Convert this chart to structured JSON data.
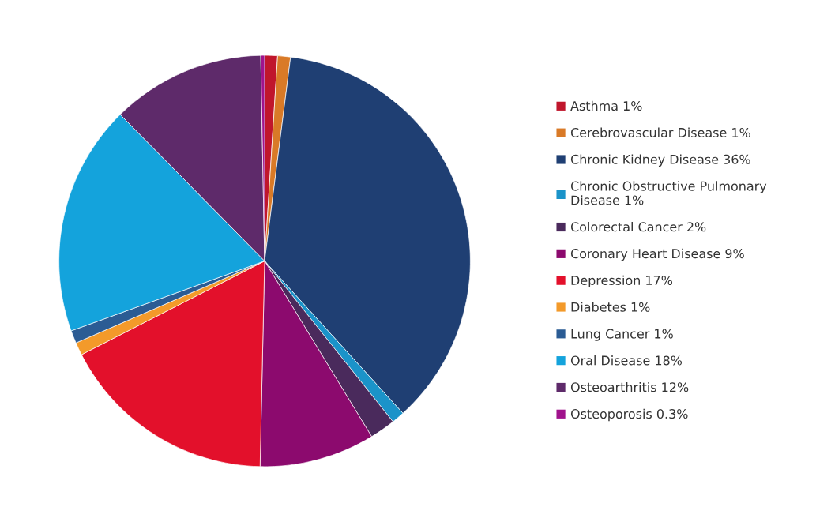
{
  "chart_data": {
    "type": "pie",
    "categories": [
      "Asthma 1%",
      "Cerebrovascular Disease 1%",
      "Chronic Kidney Disease 36%",
      "Chronic Obstructive Pulmonary\nDisease 1%",
      "Colorectal Cancer 2%",
      "Coronary Heart Disease 9%",
      "Depression 17%",
      "Diabetes 1%",
      "Lung Cancer 1%",
      "Oral Disease 18%",
      "Osteoarthritis 12%",
      "Osteoporosis 0.3%"
    ],
    "values": [
      1,
      1,
      36,
      1,
      2,
      9,
      17,
      1,
      1,
      18,
      12,
      0.3
    ],
    "colors": [
      "#c0162c",
      "#d97a27",
      "#1f3f73",
      "#1b93c9",
      "#4a2a5c",
      "#8c0a6e",
      "#e3102b",
      "#f39a2a",
      "#2b5c94",
      "#14a3dc",
      "#5e2a6a",
      "#a0138c"
    ],
    "legend": "right"
  }
}
